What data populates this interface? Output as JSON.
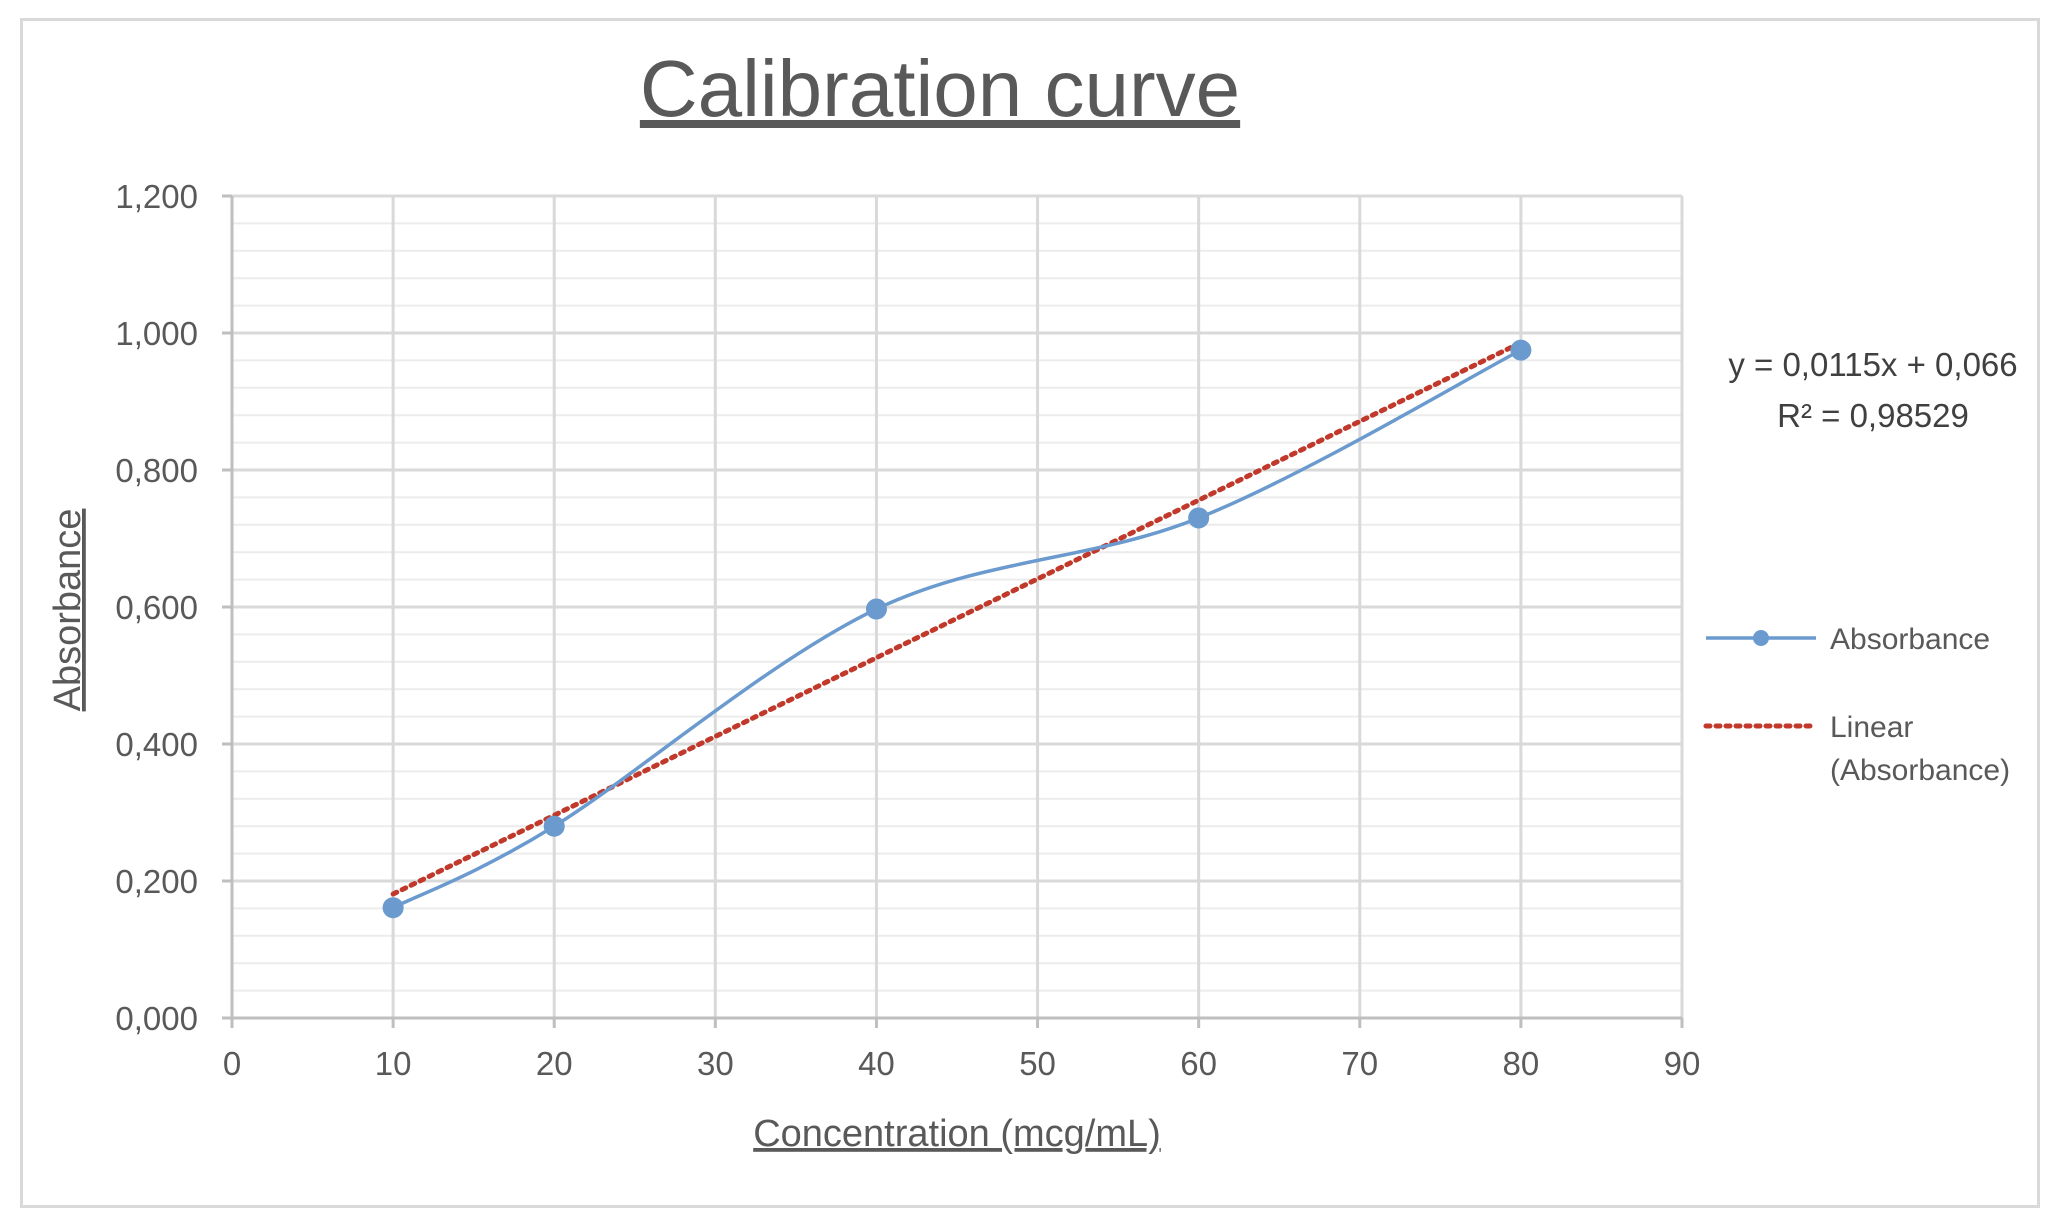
{
  "chart_data": {
    "type": "line",
    "title": "Calibration curve",
    "xlabel": "Concentration (mcg/mL)",
    "ylabel": "Absorbance",
    "xlim": [
      0,
      90
    ],
    "ylim": [
      0,
      1.2
    ],
    "x_ticks": [
      0,
      10,
      20,
      30,
      40,
      50,
      60,
      70,
      80,
      90
    ],
    "x_tick_labels": [
      "0",
      "10",
      "20",
      "30",
      "40",
      "50",
      "60",
      "70",
      "80",
      "90"
    ],
    "y_ticks": [
      0,
      0.2,
      0.4,
      0.6,
      0.8,
      1.0,
      1.2
    ],
    "y_tick_labels": [
      "0,000",
      "0,200",
      "0,400",
      "0,600",
      "0,800",
      "1,000",
      "1,200"
    ],
    "y_minor_step": 0.04,
    "grid": true,
    "legend_position": "right",
    "series": [
      {
        "name": "Absorbance",
        "color": "#6a9ace",
        "marker": "circle",
        "smooth": true,
        "x": [
          10,
          20,
          40,
          60,
          80
        ],
        "y": [
          0.161,
          0.28,
          0.597,
          0.73,
          0.975
        ]
      }
    ],
    "trendline": {
      "legend_lines": [
        "Linear",
        "(Absorbance)"
      ],
      "color": "#c0392b",
      "style": "dotted",
      "slope": 0.0115,
      "intercept": 0.066,
      "x_range": [
        10,
        80
      ],
      "equation": "y = 0,0115x + 0,066",
      "r_squared": "R² = 0,98529"
    }
  }
}
